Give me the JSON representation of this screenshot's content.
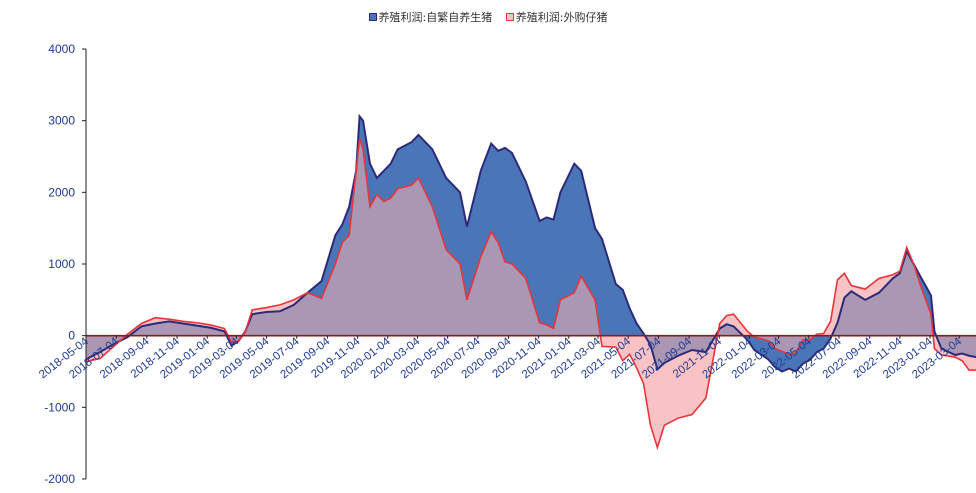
{
  "chart_data": {
    "type": "area",
    "title": "",
    "xlabel": "",
    "ylabel": "",
    "ylim": [
      -2000,
      4000
    ],
    "yticks": [
      -2000,
      -1000,
      0,
      1000,
      2000,
      3000,
      4000
    ],
    "xlim": [
      "2018-05-04",
      "2023-04-07"
    ],
    "xtick_labels": [
      "2018-05-04",
      "2018-07-04",
      "2018-09-04",
      "2018-11-04",
      "2019-01-04",
      "2019-03-04",
      "2019-05-04",
      "2019-07-04",
      "2019-09-04",
      "2019-11-04",
      "2020-01-04",
      "2020-03-04",
      "2020-05-04",
      "2020-07-04",
      "2020-09-04",
      "2020-11-04",
      "2021-01-04",
      "2021-03-04",
      "2021-05-04",
      "2021-07-04",
      "2021-09-04",
      "2021-11-04",
      "2022-01-04",
      "2022-03-04",
      "2022-05-04",
      "2022-07-04",
      "2022-09-04",
      "2022-11-04",
      "2023-01-04",
      "2023-03-04"
    ],
    "grid": false,
    "legend_position": "top-center",
    "series": [
      {
        "name": "养殖利润:自繁自养生猪",
        "fill_color": "#4a76b8",
        "line_color": "#2e2a7a",
        "points": [
          [
            "2018-05-04",
            -330
          ],
          [
            "2018-06-01",
            -230
          ],
          [
            "2018-06-29",
            -120
          ],
          [
            "2018-07-27",
            -20
          ],
          [
            "2018-08-24",
            130
          ],
          [
            "2018-09-21",
            170
          ],
          [
            "2018-10-19",
            200
          ],
          [
            "2018-11-16",
            170
          ],
          [
            "2018-12-14",
            140
          ],
          [
            "2019-01-11",
            110
          ],
          [
            "2019-02-08",
            60
          ],
          [
            "2019-02-22",
            -140
          ],
          [
            "2019-03-08",
            -80
          ],
          [
            "2019-03-22",
            60
          ],
          [
            "2019-04-05",
            300
          ],
          [
            "2019-05-03",
            330
          ],
          [
            "2019-05-31",
            340
          ],
          [
            "2019-06-28",
            430
          ],
          [
            "2019-07-26",
            600
          ],
          [
            "2019-08-23",
            760
          ],
          [
            "2019-09-20",
            1400
          ],
          [
            "2019-10-04",
            1550
          ],
          [
            "2019-10-18",
            1800
          ],
          [
            "2019-11-01",
            2300
          ],
          [
            "2019-11-08",
            3060
          ],
          [
            "2019-11-15",
            3000
          ],
          [
            "2019-11-29",
            2400
          ],
          [
            "2019-12-13",
            2200
          ],
          [
            "2019-12-27",
            2300
          ],
          [
            "2020-01-10",
            2400
          ],
          [
            "2020-01-24",
            2600
          ],
          [
            "2020-02-21",
            2700
          ],
          [
            "2020-03-06",
            2800
          ],
          [
            "2020-04-03",
            2600
          ],
          [
            "2020-05-01",
            2200
          ],
          [
            "2020-05-29",
            2000
          ],
          [
            "2020-06-12",
            1520
          ],
          [
            "2020-07-10",
            2300
          ],
          [
            "2020-07-31",
            2680
          ],
          [
            "2020-08-14",
            2580
          ],
          [
            "2020-08-28",
            2620
          ],
          [
            "2020-09-11",
            2550
          ],
          [
            "2020-10-09",
            2150
          ],
          [
            "2020-11-06",
            1600
          ],
          [
            "2020-11-20",
            1650
          ],
          [
            "2020-12-04",
            1620
          ],
          [
            "2020-12-18",
            2000
          ],
          [
            "2021-01-15",
            2400
          ],
          [
            "2021-01-29",
            2300
          ],
          [
            "2021-02-26",
            1500
          ],
          [
            "2021-03-12",
            1350
          ],
          [
            "2021-04-09",
            720
          ],
          [
            "2021-04-23",
            640
          ],
          [
            "2021-05-07",
            380
          ],
          [
            "2021-05-21",
            170
          ],
          [
            "2021-06-04",
            30
          ],
          [
            "2021-06-18",
            -130
          ],
          [
            "2021-07-02",
            -470
          ],
          [
            "2021-07-16",
            -380
          ],
          [
            "2021-08-13",
            -280
          ],
          [
            "2021-09-10",
            -200
          ],
          [
            "2021-10-08",
            -230
          ],
          [
            "2021-11-05",
            100
          ],
          [
            "2021-11-19",
            160
          ],
          [
            "2021-12-03",
            130
          ],
          [
            "2021-12-31",
            -60
          ],
          [
            "2022-01-14",
            -200
          ],
          [
            "2022-02-11",
            -330
          ],
          [
            "2022-02-25",
            -440
          ],
          [
            "2022-03-11",
            -500
          ],
          [
            "2022-03-25",
            -460
          ],
          [
            "2022-04-08",
            -500
          ],
          [
            "2022-04-22",
            -390
          ],
          [
            "2022-05-06",
            -340
          ],
          [
            "2022-05-20",
            -230
          ],
          [
            "2022-06-03",
            -180
          ],
          [
            "2022-06-17",
            -40
          ],
          [
            "2022-07-01",
            180
          ],
          [
            "2022-07-15",
            530
          ],
          [
            "2022-07-29",
            620
          ],
          [
            "2022-08-26",
            500
          ],
          [
            "2022-09-23",
            600
          ],
          [
            "2022-10-21",
            800
          ],
          [
            "2022-11-04",
            870
          ],
          [
            "2022-11-18",
            1180
          ],
          [
            "2022-12-02",
            1000
          ],
          [
            "2022-12-16",
            820
          ],
          [
            "2022-12-30",
            650
          ],
          [
            "2023-01-06",
            560
          ],
          [
            "2023-01-13",
            60
          ],
          [
            "2023-01-27",
            -180
          ],
          [
            "2023-02-24",
            -270
          ],
          [
            "2023-03-10",
            -250
          ],
          [
            "2023-03-24",
            -280
          ],
          [
            "2023-04-07",
            -300
          ]
        ]
      },
      {
        "name": "养殖利润:外购仔猪",
        "fill_color": "#f9c3c5",
        "line_color": "#e8343b",
        "points": [
          [
            "2018-05-04",
            -360
          ],
          [
            "2018-06-01",
            -320
          ],
          [
            "2018-06-29",
            -150
          ],
          [
            "2018-07-27",
            20
          ],
          [
            "2018-08-24",
            170
          ],
          [
            "2018-09-21",
            250
          ],
          [
            "2018-10-19",
            230
          ],
          [
            "2018-11-16",
            200
          ],
          [
            "2018-12-14",
            180
          ],
          [
            "2019-01-11",
            150
          ],
          [
            "2019-02-08",
            100
          ],
          [
            "2019-02-22",
            -90
          ],
          [
            "2019-03-08",
            -80
          ],
          [
            "2019-03-22",
            50
          ],
          [
            "2019-04-05",
            360
          ],
          [
            "2019-05-03",
            390
          ],
          [
            "2019-05-31",
            430
          ],
          [
            "2019-06-28",
            500
          ],
          [
            "2019-07-26",
            600
          ],
          [
            "2019-08-23",
            520
          ],
          [
            "2019-09-20",
            1000
          ],
          [
            "2019-10-04",
            1300
          ],
          [
            "2019-10-18",
            1400
          ],
          [
            "2019-11-01",
            2300
          ],
          [
            "2019-11-08",
            2750
          ],
          [
            "2019-11-15",
            2600
          ],
          [
            "2019-11-29",
            1800
          ],
          [
            "2019-12-13",
            1970
          ],
          [
            "2019-12-27",
            1870
          ],
          [
            "2020-01-10",
            1920
          ],
          [
            "2020-01-24",
            2050
          ],
          [
            "2020-02-21",
            2100
          ],
          [
            "2020-03-06",
            2200
          ],
          [
            "2020-04-03",
            1800
          ],
          [
            "2020-05-01",
            1200
          ],
          [
            "2020-05-29",
            1000
          ],
          [
            "2020-06-12",
            500
          ],
          [
            "2020-07-10",
            1100
          ],
          [
            "2020-07-31",
            1450
          ],
          [
            "2020-08-14",
            1300
          ],
          [
            "2020-08-28",
            1030
          ],
          [
            "2020-09-11",
            1000
          ],
          [
            "2020-10-09",
            800
          ],
          [
            "2020-11-06",
            180
          ],
          [
            "2020-11-20",
            150
          ],
          [
            "2020-12-04",
            100
          ],
          [
            "2020-12-18",
            500
          ],
          [
            "2021-01-15",
            600
          ],
          [
            "2021-01-29",
            830
          ],
          [
            "2021-02-26",
            500
          ],
          [
            "2021-03-12",
            -150
          ],
          [
            "2021-04-09",
            -160
          ],
          [
            "2021-04-23",
            -350
          ],
          [
            "2021-05-07",
            -260
          ],
          [
            "2021-05-21",
            -450
          ],
          [
            "2021-06-04",
            -670
          ],
          [
            "2021-06-18",
            -1250
          ],
          [
            "2021-07-02",
            -1560
          ],
          [
            "2021-07-16",
            -1250
          ],
          [
            "2021-08-13",
            -1150
          ],
          [
            "2021-09-10",
            -1100
          ],
          [
            "2021-10-08",
            -870
          ],
          [
            "2021-11-05",
            170
          ],
          [
            "2021-11-19",
            280
          ],
          [
            "2021-12-03",
            300
          ],
          [
            "2021-12-31",
            60
          ],
          [
            "2022-01-14",
            -20
          ],
          [
            "2022-02-11",
            -70
          ],
          [
            "2022-02-25",
            -180
          ],
          [
            "2022-03-11",
            -220
          ],
          [
            "2022-03-25",
            -260
          ],
          [
            "2022-04-08",
            -240
          ],
          [
            "2022-04-22",
            -60
          ],
          [
            "2022-05-06",
            -60
          ],
          [
            "2022-05-20",
            20
          ],
          [
            "2022-06-03",
            30
          ],
          [
            "2022-06-17",
            200
          ],
          [
            "2022-07-01",
            780
          ],
          [
            "2022-07-15",
            870
          ],
          [
            "2022-07-29",
            700
          ],
          [
            "2022-08-26",
            650
          ],
          [
            "2022-09-23",
            800
          ],
          [
            "2022-10-21",
            850
          ],
          [
            "2022-11-04",
            900
          ],
          [
            "2022-11-18",
            1230
          ],
          [
            "2022-12-02",
            1000
          ],
          [
            "2022-12-16",
            700
          ],
          [
            "2022-12-30",
            430
          ],
          [
            "2023-01-06",
            300
          ],
          [
            "2023-01-13",
            -180
          ],
          [
            "2023-01-27",
            -270
          ],
          [
            "2023-02-24",
            -300
          ],
          [
            "2023-03-10",
            -350
          ],
          [
            "2023-03-24",
            -480
          ],
          [
            "2023-04-07",
            -480
          ]
        ]
      }
    ],
    "overlap_color": "#a997b4",
    "zero_line_color": "#8b1a1a",
    "axis_color": "#1f1f1f",
    "tick_label_color": "#1f3a93"
  }
}
